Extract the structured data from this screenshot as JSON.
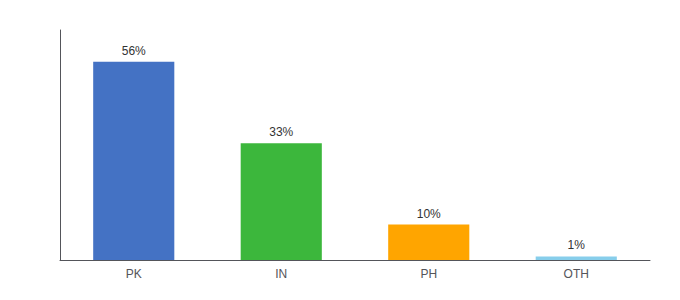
{
  "chart_data": {
    "type": "bar",
    "categories": [
      "PK",
      "IN",
      "PH",
      "OTH"
    ],
    "values": [
      56,
      33,
      10,
      1
    ],
    "value_labels": [
      "56%",
      "33%",
      "10%",
      "1%"
    ],
    "colors": [
      "#4472c4",
      "#3cb73c",
      "#ffa500",
      "#87ceeb"
    ],
    "ylim": [
      0,
      65
    ],
    "grid": false,
    "data_labels": true,
    "tick_labels": "x"
  }
}
